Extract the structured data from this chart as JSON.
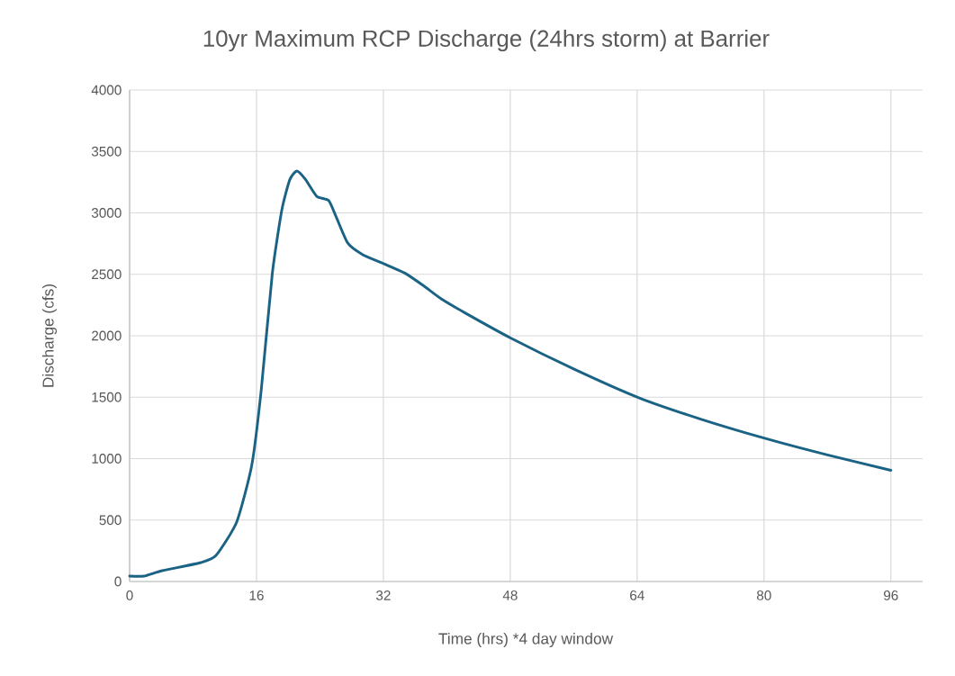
{
  "chart_data": {
    "type": "line",
    "title": "10yr Maximum RCP Discharge (24hrs storm) at Barrier",
    "xlabel": "Time (hrs) *4 day window",
    "ylabel": "Discharge (cfs)",
    "x": [
      0,
      1.8,
      4.1,
      9.0,
      10.9,
      13.5,
      15.4,
      16.6,
      18.0,
      19.2,
      20.2,
      21.1,
      22.2,
      23.6,
      25.1,
      26.0,
      27.5,
      29.4,
      32.1,
      34.7,
      37.0,
      39.3,
      42.3,
      48.1,
      56,
      64.2,
      72,
      80.4,
      88,
      96
    ],
    "series": [
      {
        "color": "#1b6385",
        "values": [
          44,
          44,
          88,
          154,
          212,
          483,
          945,
          1560,
          2510,
          3025,
          3270,
          3340,
          3270,
          3135,
          3100,
          2975,
          2755,
          2660,
          2585,
          2510,
          2410,
          2300,
          2186,
          1980,
          1730,
          1496,
          1322,
          1160,
          1030,
          905
        ]
      }
    ],
    "xlim": [
      0,
      100
    ],
    "ylim": [
      0,
      4000
    ],
    "xticks": [
      0,
      16,
      32,
      48,
      64,
      80,
      96
    ],
    "yticks": [
      0,
      500,
      1000,
      1500,
      2000,
      2500,
      3000,
      3500,
      4000
    ],
    "grid": true,
    "marker": "none",
    "line_style": "solid"
  }
}
